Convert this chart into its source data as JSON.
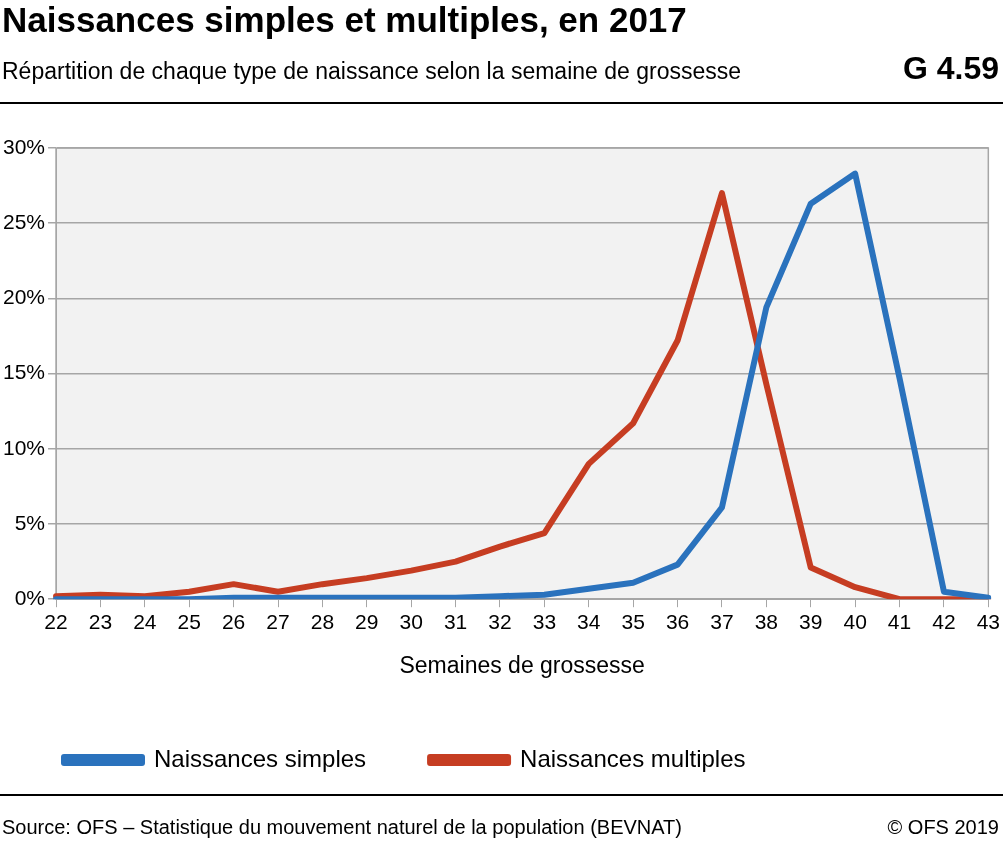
{
  "chart_data": {
    "type": "line",
    "title": "Naissances simples et multiples, en 2017",
    "subtitle": "Répartition de chaque type de naissance selon la semaine de grossesse",
    "xlabel": "Semaines de grossesse",
    "annotations": [
      "G 4.59",
      "Source: OFS – Statistique du mouvement naturel de la population (BEVNAT)",
      "© OFS 2019"
    ],
    "categories": [
      "22",
      "23",
      "24",
      "25",
      "26",
      "27",
      "28",
      "29",
      "30",
      "31",
      "32",
      "33",
      "34",
      "35",
      "36",
      "37",
      "38",
      "39",
      "40",
      "41",
      "42",
      "43"
    ],
    "series": [
      {
        "name": "Naissances simples",
        "color": "#2a72bd",
        "values": [
          0,
          0,
          0,
          0,
          0.1,
          0.1,
          0.1,
          0.1,
          0.1,
          0.1,
          0.2,
          0.3,
          0.7,
          1.1,
          2.3,
          6.1,
          19.4,
          26.3,
          28.3,
          14.7,
          0.5,
          0.1
        ]
      },
      {
        "name": "Naissances multiples",
        "color": "#c63d22",
        "values": [
          0.2,
          0.3,
          0.2,
          0.5,
          1.0,
          0.5,
          1.0,
          1.4,
          1.9,
          2.5,
          3.5,
          4.4,
          9.0,
          11.7,
          17.2,
          27.0,
          14.3,
          2.1,
          0.8,
          0,
          0,
          0
        ]
      }
    ],
    "ylim": [
      0,
      30
    ],
    "yticks": [
      {
        "value": 0,
        "label": "0%"
      },
      {
        "value": 5,
        "label": "5%"
      },
      {
        "value": 10,
        "label": "10%"
      },
      {
        "value": 15,
        "label": "15%"
      },
      {
        "value": 20,
        "label": "20%"
      },
      {
        "value": 25,
        "label": "25%"
      },
      {
        "value": 30,
        "label": "30%"
      }
    ],
    "grid": "y",
    "legend": "bottom",
    "marker": "none",
    "line_style": "solid"
  }
}
